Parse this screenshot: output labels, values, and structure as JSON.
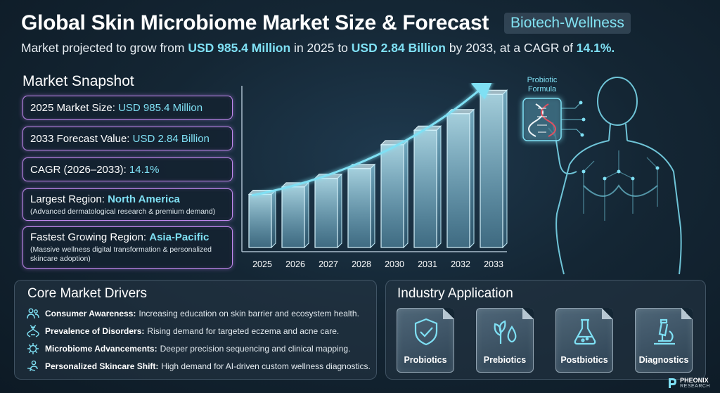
{
  "header": {
    "title": "Global Skin Microbiome Market Size & Forecast",
    "badge": "Biotech-Wellness",
    "subtitle_parts": [
      "Market projected to grow from ",
      "USD 985.4 Million",
      " in 2025 to ",
      "USD 2.84 Billion",
      " by 2033, at a CAGR of ",
      "14.1%."
    ]
  },
  "snapshot": {
    "title": "Market Snapshot",
    "cards": [
      {
        "label": "2025 Market Size: ",
        "value": "USD 985.4 Million",
        "note": ""
      },
      {
        "label": "2033 Forecast Value: ",
        "value": "USD 2.84 Billion",
        "note": ""
      },
      {
        "label": "CAGR (2026–2033): ",
        "value": "14.1%",
        "note": ""
      },
      {
        "label": "Largest Region: ",
        "value": "North America",
        "note": "(Advanced dermatological research & premium demand)"
      },
      {
        "label": "Fastest Growing Region: ",
        "value": "Asia-Pacific",
        "note": "(Massive wellness digital transformation & personalized skincare adoption)"
      }
    ]
  },
  "chart_data": {
    "type": "bar",
    "categories": [
      "2025",
      "2026",
      "2027",
      "2028",
      "2030",
      "2031",
      "2032",
      "2033"
    ],
    "values": [
      985.4,
      1124,
      1283,
      1464,
      1906,
      2175,
      2482,
      2840
    ],
    "title": "",
    "xlabel": "",
    "ylabel": "",
    "ylim": [
      0,
      3000
    ],
    "grid": false,
    "trend_arrow": true,
    "colors": {
      "bar": "#8fd3ea",
      "arrow": "#7fe0f4"
    }
  },
  "drivers": {
    "title": "Core Market Drivers",
    "items": [
      {
        "icon": "people-icon",
        "label": "Consumer Awareness:",
        "desc": "Increasing education on skin barrier and ecosystem health."
      },
      {
        "icon": "dna-icon",
        "label": "Prevalence of Disorders:",
        "desc": "Rising demand for targeted eczema and acne care."
      },
      {
        "icon": "microbe-icon",
        "label": "Microbiome Advancements:",
        "desc": "Deeper precision sequencing and clinical mapping."
      },
      {
        "icon": "person-care-icon",
        "label": "Personalized Skincare Shift:",
        "desc": "High demand for AI-driven custom wellness diagnostics."
      }
    ]
  },
  "industry": {
    "title": "Industry Application",
    "tiles": [
      {
        "icon": "shield-check-icon",
        "label": "Probiotics"
      },
      {
        "icon": "leaf-drop-icon",
        "label": "Prebiotics"
      },
      {
        "icon": "flask-icon",
        "label": "Postbiotics"
      },
      {
        "icon": "microscope-icon",
        "label": "Diagnostics"
      }
    ]
  },
  "illustration": {
    "probiotic_label": "Probiotic Formula"
  },
  "logo": {
    "name": "PHEONIX",
    "sub": "RESEARCH"
  },
  "colors": {
    "accent": "#7fe0f4",
    "card_border": "#c389f0",
    "background": "#142634"
  }
}
